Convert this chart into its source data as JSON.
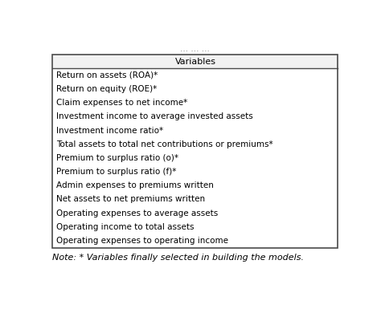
{
  "header": "Variables",
  "rows": [
    "Return on assets (ROA)*",
    "Return on equity (ROE)*",
    "Claim expenses to net income*",
    "Investment income to average invested assets",
    "Investment income ratio*",
    "Total assets to total net contributions or premiums*",
    "Premium to surplus ratio (o)*",
    "Premium to surplus ratio (f)*",
    "Admin expenses to premiums written",
    "Net assets to net premiums written",
    "Operating expenses to average assets",
    "Operating income to total assets",
    "Operating expenses to operating income"
  ],
  "note": "Note: * Variables finally selected in building the models.",
  "title_dots": "... ... ...",
  "bg_color": "#ffffff",
  "text_color": "#000000",
  "header_bg": "#ffffff",
  "border_color": "#4a4a4a",
  "font_size": 7.5,
  "header_font_size": 8.0,
  "note_font_size": 8.0,
  "title_font_size": 7.5
}
